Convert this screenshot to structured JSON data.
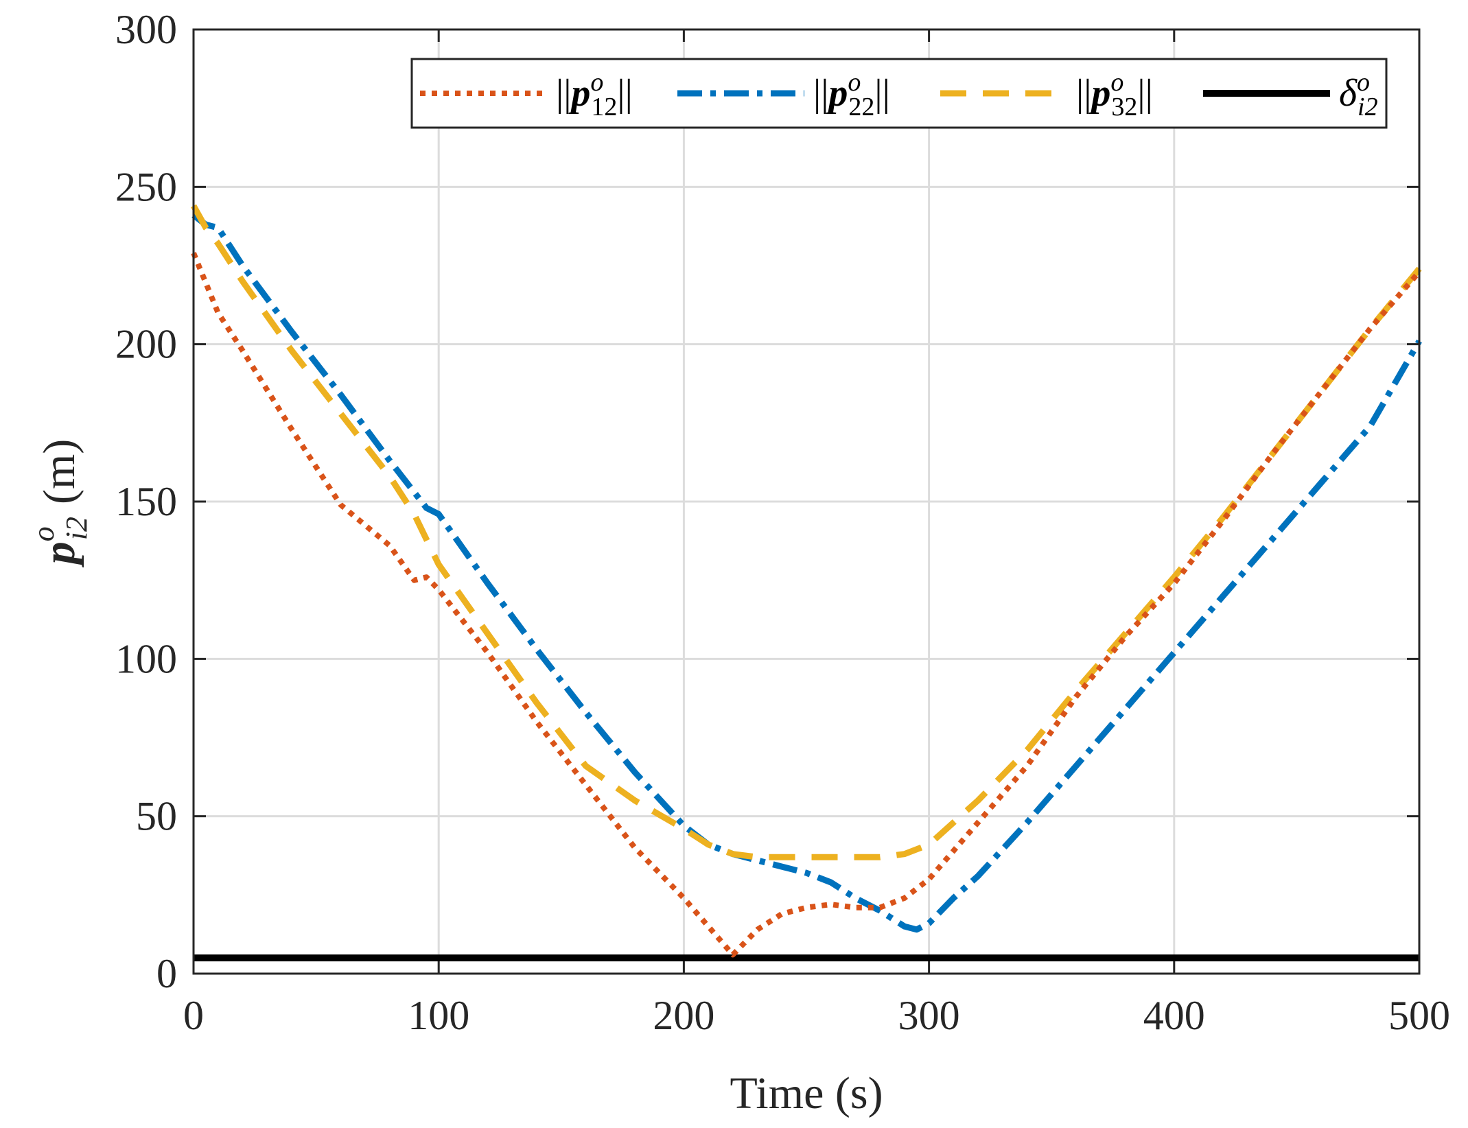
{
  "chart_data": {
    "type": "line",
    "xlabel": "Time (s)",
    "ylabel": {
      "symbol": "p",
      "superscript": "o",
      "subscript": "i2",
      "unit": "(m)"
    },
    "xlim": [
      0,
      500
    ],
    "ylim": [
      0,
      300
    ],
    "xticks": [
      "0",
      "100",
      "200",
      "300",
      "400",
      "500"
    ],
    "yticks": [
      "0",
      "50",
      "100",
      "150",
      "200",
      "250",
      "300"
    ],
    "grid": true,
    "legend_position": "top-right",
    "series": [
      {
        "name": "||p^o_12||",
        "label": {
          "prefix": "||",
          "symbol": "p",
          "superscript": "o",
          "subscript": "12",
          "suffix": "||"
        },
        "color": "#D95319",
        "style": "dotted",
        "x": [
          0,
          10,
          20,
          40,
          60,
          80,
          90,
          95,
          100,
          120,
          140,
          160,
          180,
          200,
          210,
          220,
          230,
          240,
          250,
          260,
          270,
          280,
          290,
          300,
          320,
          340,
          360,
          380,
          400,
          420,
          440,
          460,
          480,
          500
        ],
        "y": [
          229,
          210,
          198,
          173,
          149,
          136,
          125,
          126,
          122,
          102,
          80,
          60,
          40,
          24,
          15,
          6,
          14,
          19,
          21,
          22,
          21,
          21,
          24,
          30,
          48,
          66,
          88,
          107,
          124,
          144,
          165,
          185,
          205,
          223
        ]
      },
      {
        "name": "||p^o_22||",
        "label": {
          "prefix": "||",
          "symbol": "p",
          "superscript": "o",
          "subscript": "22",
          "suffix": "||"
        },
        "color": "#0072BD",
        "style": "dashdot",
        "x": [
          0,
          5,
          10,
          20,
          40,
          60,
          80,
          95,
          100,
          110,
          120,
          140,
          160,
          180,
          200,
          210,
          220,
          230,
          240,
          250,
          260,
          270,
          280,
          290,
          295,
          300,
          310,
          320,
          340,
          360,
          380,
          400,
          420,
          440,
          460,
          480,
          500
        ],
        "y": [
          241,
          238,
          237,
          225,
          204,
          184,
          163,
          148,
          146,
          135,
          124,
          103,
          83,
          64,
          47,
          41,
          38,
          36,
          34,
          32,
          29,
          24,
          20,
          15,
          14,
          16,
          24,
          31,
          48,
          66,
          84,
          102,
          120,
          138,
          156,
          174,
          201
        ]
      },
      {
        "name": "||p^o_32||",
        "label": {
          "prefix": "||",
          "symbol": "p",
          "superscript": "o",
          "subscript": "32",
          "suffix": "||"
        },
        "color": "#EDB120",
        "style": "dashed",
        "x": [
          0,
          5,
          10,
          20,
          40,
          60,
          80,
          90,
          95,
          100,
          120,
          140,
          160,
          180,
          200,
          210,
          220,
          230,
          240,
          250,
          260,
          270,
          280,
          290,
          300,
          320,
          340,
          360,
          380,
          400,
          420,
          440,
          460,
          480,
          500
        ],
        "y": [
          244,
          237,
          232,
          220,
          198,
          178,
          158,
          146,
          138,
          130,
          108,
          86,
          66,
          55,
          46,
          41,
          38,
          37,
          37,
          37,
          37,
          37,
          37,
          38,
          41,
          55,
          71,
          90,
          108,
          126,
          145,
          165,
          185,
          205,
          224
        ]
      },
      {
        "name": "δ^o_i2",
        "label": {
          "prefix": "",
          "symbol": "δ",
          "superscript": "o",
          "subscript": "i2",
          "suffix": ""
        },
        "color": "#000000",
        "style": "solid",
        "x": [
          0,
          500
        ],
        "y": [
          5,
          5
        ]
      }
    ]
  }
}
